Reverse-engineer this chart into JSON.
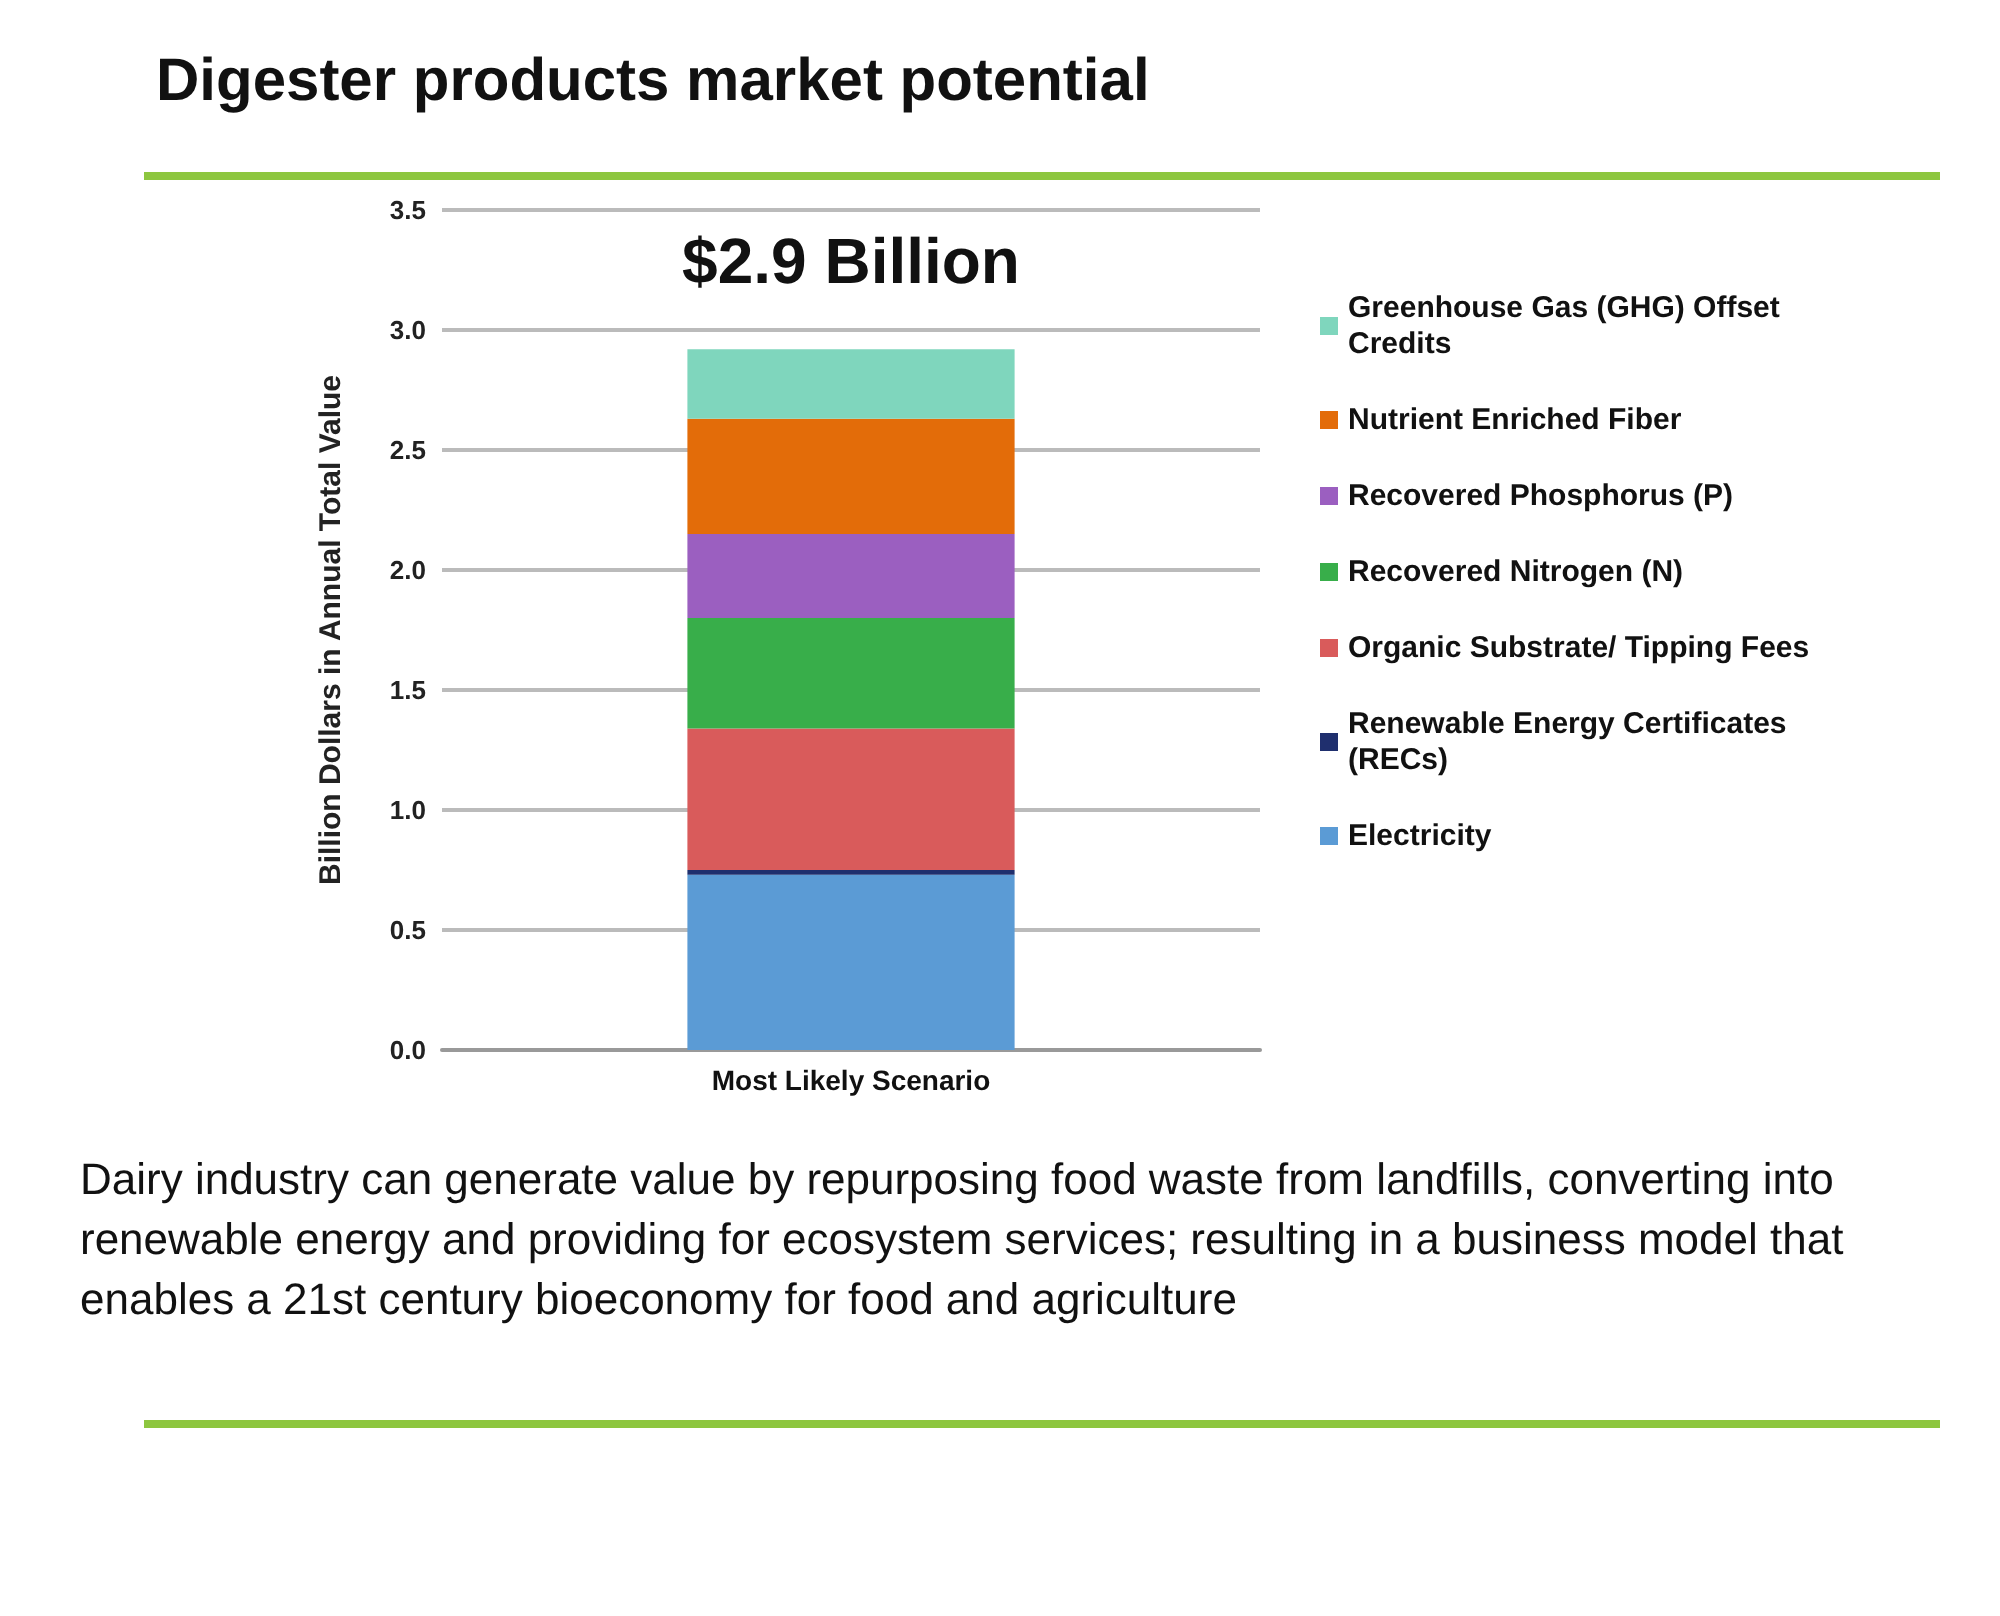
{
  "chart_data": {
    "type": "bar",
    "title": "Digester products market potential",
    "ylabel": "Billion Dollars in Annual Total Value",
    "categories": [
      "Most Likely Scenario"
    ],
    "stacked": true,
    "series": [
      {
        "name": "Electricity",
        "color": "#5b9bd5",
        "values": [
          0.73
        ]
      },
      {
        "name": "Renewable Energy Certificates (RECs)",
        "color": "#1f2f6e",
        "values": [
          0.02
        ]
      },
      {
        "name": "Organic Substrate/ Tipping Fees",
        "color": "#d95b5b",
        "values": [
          0.59
        ]
      },
      {
        "name": "Recovered Nitrogen (N)",
        "color": "#38ae4a",
        "values": [
          0.46
        ]
      },
      {
        "name": "Recovered Phosphorus (P)",
        "color": "#9b5fc0",
        "values": [
          0.35
        ]
      },
      {
        "name": "Nutrient Enriched Fiber",
        "color": "#e36c09",
        "values": [
          0.48
        ]
      },
      {
        "name": "Greenhouse Gas (GHG) Offset Credits",
        "color": "#7fd6bd",
        "values": [
          0.29
        ]
      }
    ],
    "totals": [
      "$2.9 Billion"
    ],
    "ylim": [
      0,
      3.5
    ],
    "yticks": [
      {
        "value": 0,
        "label": "0.0"
      },
      0.5,
      {
        "value": 1,
        "label": "1.0"
      },
      1.5,
      {
        "value": 2,
        "label": "2.0"
      },
      2.5,
      {
        "value": 3,
        "label": "3.0"
      },
      3.5
    ],
    "grid": "y",
    "legend": "right",
    "annotations": [
      "Dairy industry can generate value by repurposing food waste from landfills, converting into renewable energy  and providing for ecosystem services; resulting in a business model that enables a 21st century bioeconomy for food and agriculture"
    ]
  }
}
